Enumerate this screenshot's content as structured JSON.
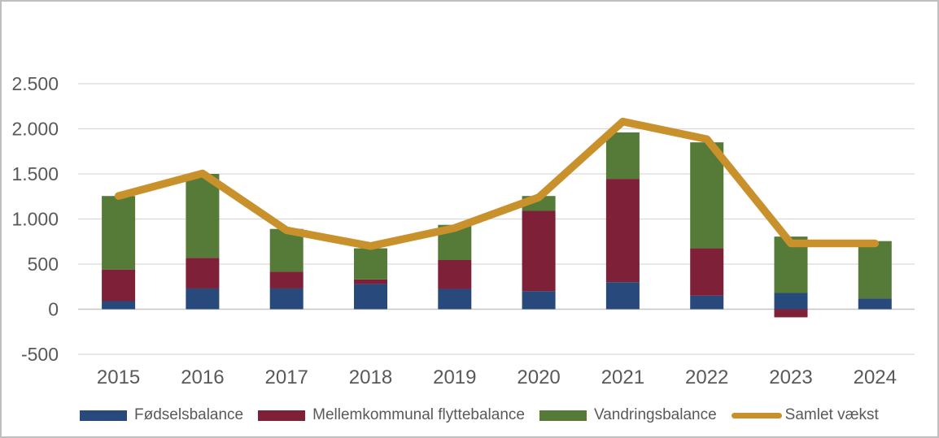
{
  "chart_data": {
    "type": "bar",
    "subtype": "stacked-bars-with-line-overlay",
    "title": "",
    "xlabel": "",
    "ylabel": "",
    "categories": [
      "2015",
      "2016",
      "2017",
      "2018",
      "2019",
      "2020",
      "2021",
      "2022",
      "2023",
      "2024"
    ],
    "series": [
      {
        "name": "Fødselsbalance",
        "type": "bar",
        "color": "#27497B",
        "values": [
          90,
          230,
          230,
          280,
          225,
          200,
          300,
          150,
          180,
          120
        ]
      },
      {
        "name": "Mellemkommunal flyttebalance",
        "type": "bar",
        "color": "#7E2138",
        "values": [
          350,
          340,
          185,
          50,
          320,
          890,
          1145,
          525,
          -90,
          0
        ]
      },
      {
        "name": "Vandringsbalance",
        "type": "bar",
        "color": "#567A37",
        "values": [
          815,
          930,
          475,
          345,
          390,
          165,
          515,
          1175,
          625,
          635
        ]
      },
      {
        "name": "Samlet vækst",
        "type": "line",
        "color": "#C9912C",
        "values": [
          1255,
          1505,
          875,
          700,
          900,
          1240,
          2080,
          1885,
          730,
          730
        ]
      }
    ],
    "ylim": [
      -500,
      2500
    ],
    "ytick_values": [
      2500,
      2000,
      1500,
      1000,
      500,
      0,
      -500
    ],
    "ytick_labels": [
      "2.500",
      "2.000",
      "1.500",
      "1.000",
      "500",
      "0",
      "-500"
    ],
    "grid": true,
    "legend_position": "bottom"
  },
  "colors": {
    "grid": "#D9D9D9",
    "zero_line": "#C6C6C6",
    "axis_text": "#595959",
    "frame_border": "#BFBFBF",
    "background": "#FFFFFF"
  }
}
